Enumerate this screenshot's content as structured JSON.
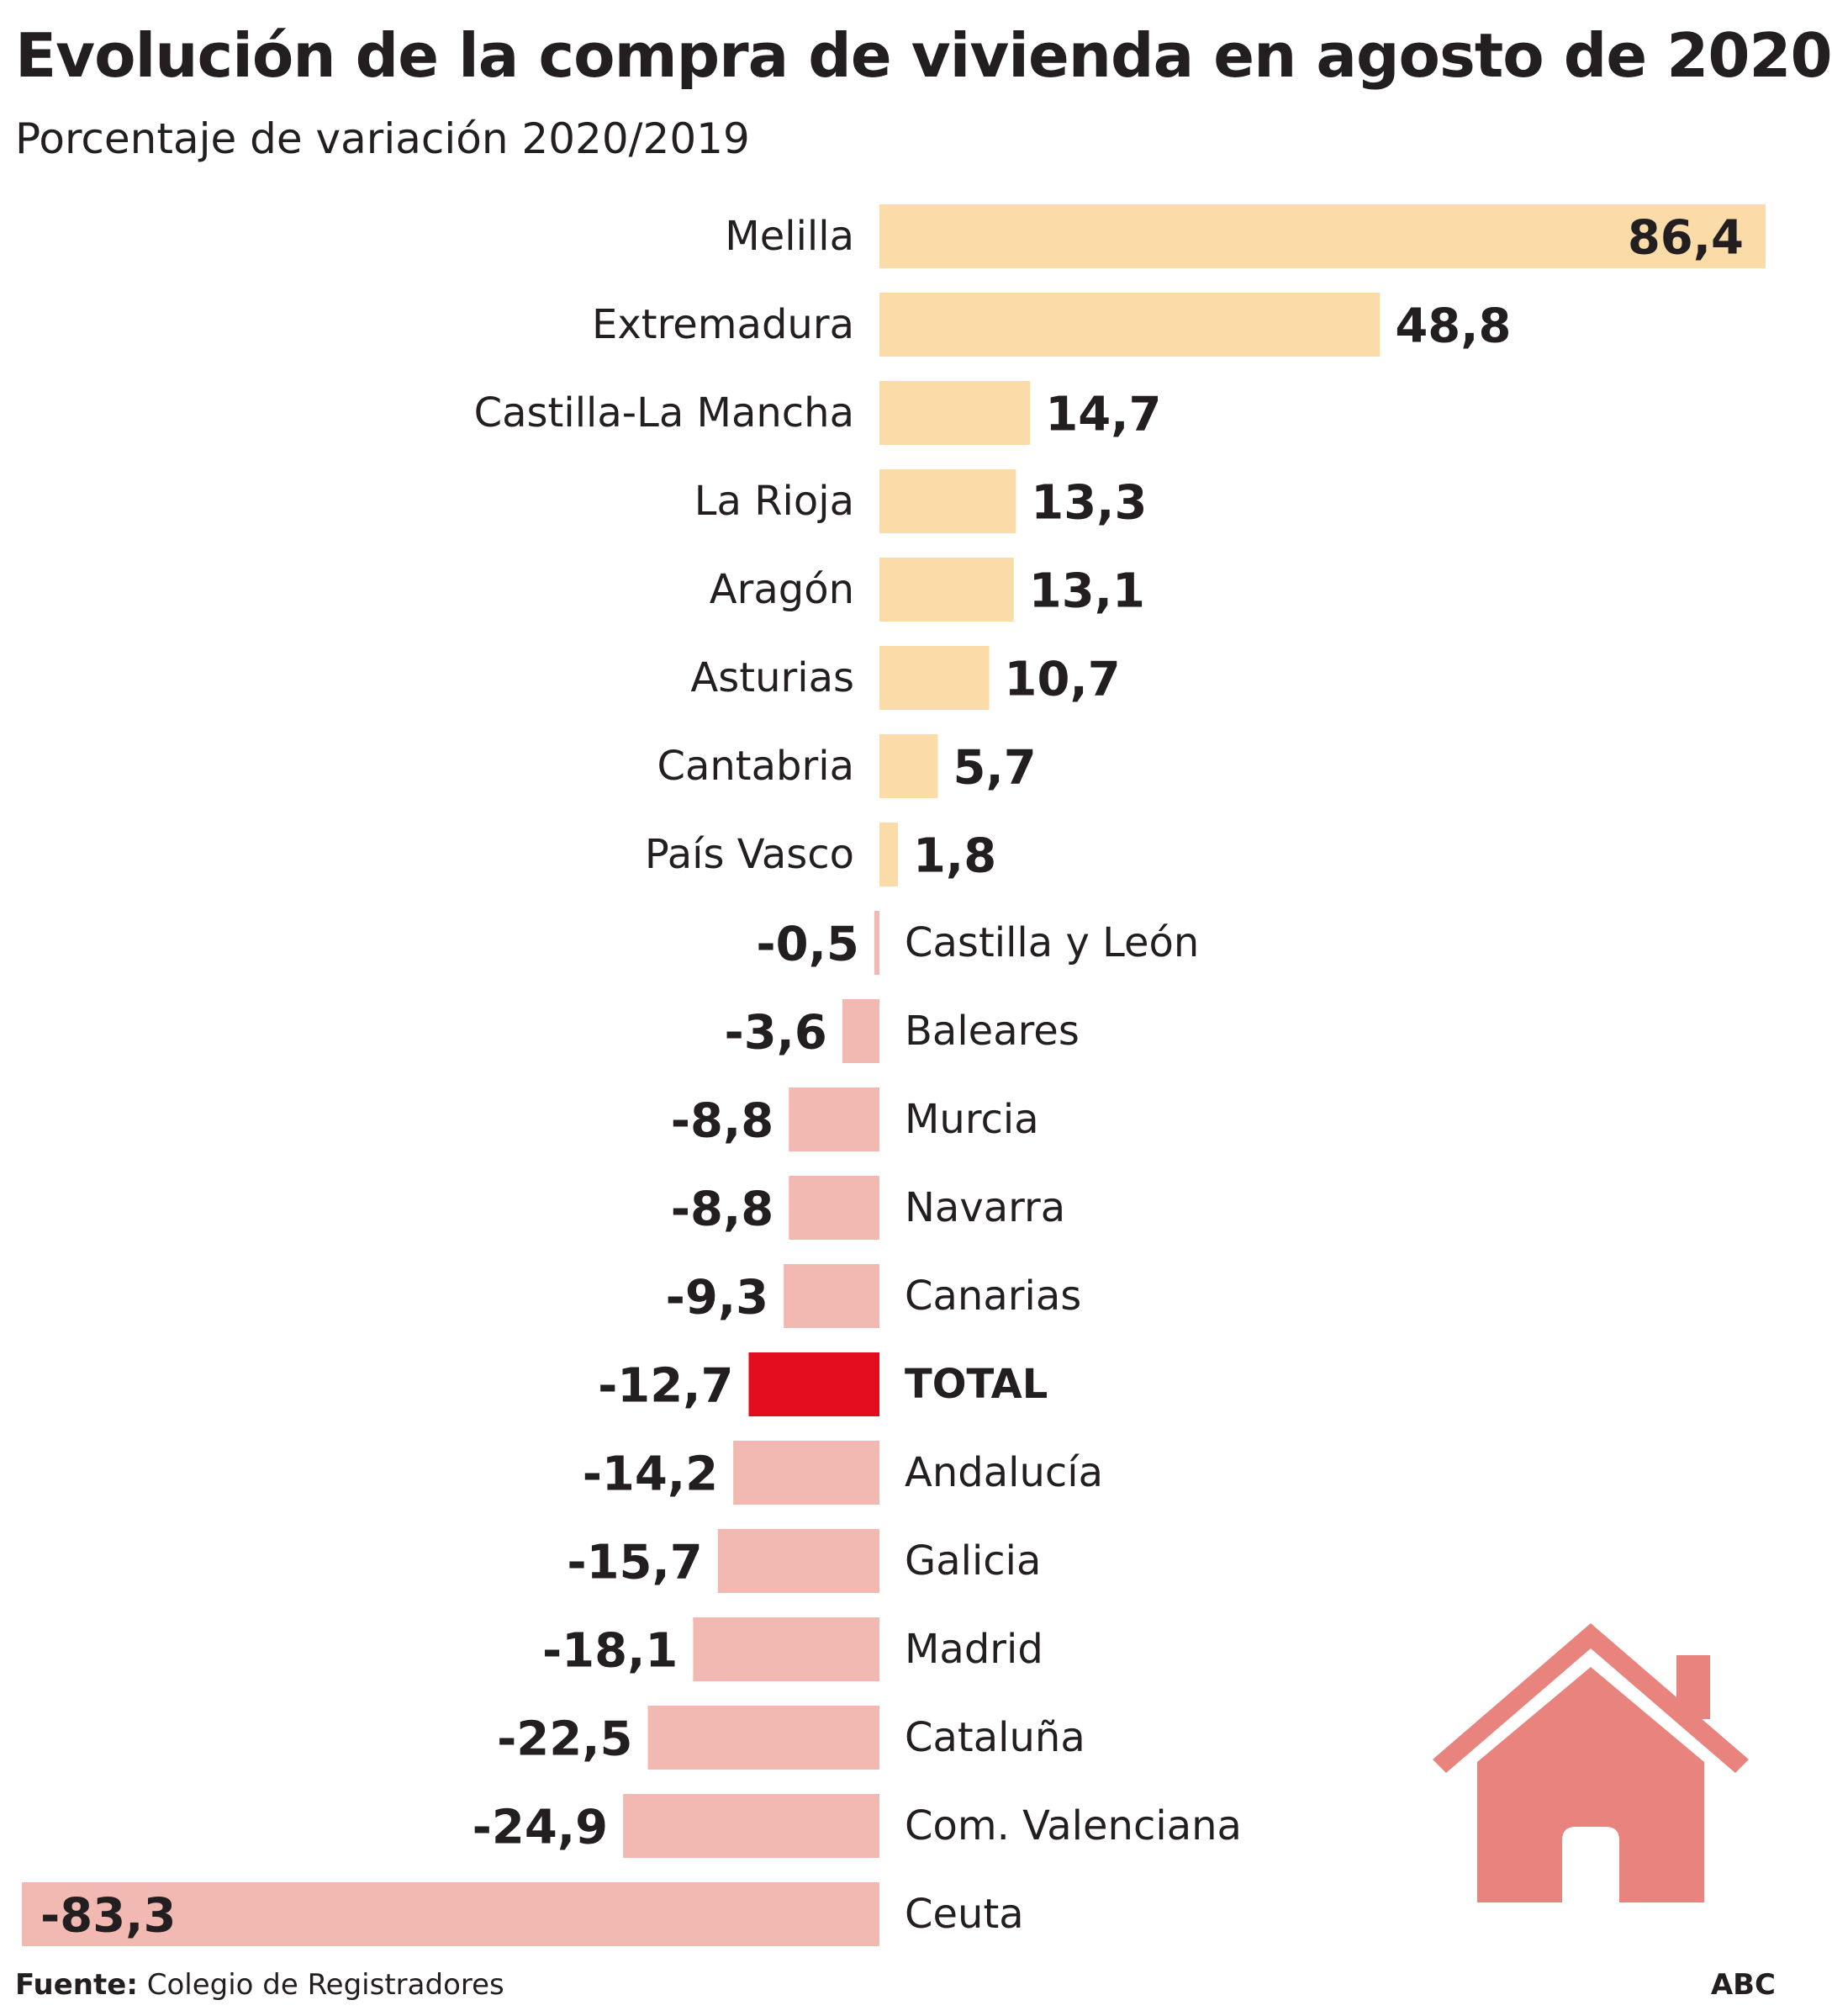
{
  "chart_data": {
    "type": "bar",
    "orientation": "horizontal",
    "title": "Evolución de la compra de vivienda en agosto de 2020",
    "subtitle": "Porcentaje de variación 2020/2019",
    "categories": [
      "Melilla",
      "Extremadura",
      "Castilla-La Mancha",
      "La Rioja",
      "Aragón",
      "Asturias",
      "Cantabria",
      "País Vasco",
      "Castilla y León",
      "Baleares",
      "Murcia",
      "Navarra",
      "Canarias",
      "TOTAL",
      "Andalucía",
      "Galicia",
      "Madrid",
      "Cataluña",
      "Com. Valenciana",
      "Ceuta"
    ],
    "values": [
      86.4,
      48.8,
      14.7,
      13.3,
      13.1,
      10.7,
      5.7,
      1.8,
      -0.5,
      -3.6,
      -8.8,
      -8.8,
      -9.3,
      -12.7,
      -14.2,
      -15.7,
      -18.1,
      -22.5,
      -24.9,
      -83.3
    ],
    "value_labels": [
      "86,4",
      "48,8",
      "14,7",
      "13,3",
      "13,1",
      "10,7",
      "5,7",
      "1,8",
      "-0,5",
      "-3,6",
      "-8,8",
      "-8,8",
      "-9,3",
      "-12,7",
      "-14,2",
      "-15,7",
      "-18,1",
      "-22,5",
      "-24,9",
      "-83,3"
    ],
    "highlight_category": "TOTAL",
    "xlim": [
      -83.3,
      86.4
    ],
    "grid": false,
    "legend": "none",
    "colors": {
      "positive": "#fbdca8",
      "negative": "#f2b8b2",
      "highlight": "#e30b1e",
      "text": "#231f20",
      "house_icon": "#e8837e"
    }
  },
  "footer": {
    "source_label": "Fuente:",
    "source_text": " Colegio de Registradores",
    "brand": "ABC"
  },
  "decoration": {
    "icon": "house-icon"
  }
}
